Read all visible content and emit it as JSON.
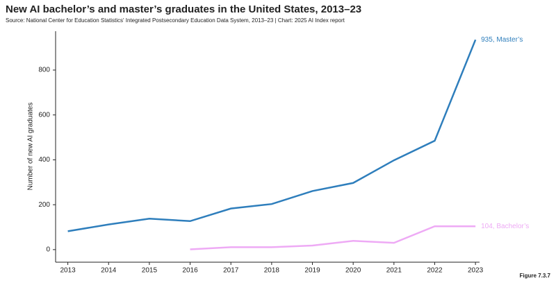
{
  "chart_data": {
    "type": "line",
    "title": "New AI bachelor’s and master’s graduates in the United States, 2013–23",
    "subtitle": "Source: National Center for Education Statistics' Integrated Postsecondary Education Data System, 2013–23 | Chart: 2025 AI Index report",
    "y_label": "Number of new AI graduates",
    "figure": "Figure 7.3.7",
    "x": [
      2013,
      2014,
      2015,
      2016,
      2017,
      2018,
      2019,
      2020,
      2021,
      2022,
      2023
    ],
    "series": [
      {
        "name": "Master's",
        "color": "#2e7ebc",
        "values": [
          82,
          112,
          138,
          127,
          183,
          203,
          261,
          297,
          398,
          485,
          935
        ],
        "value_labels": [
          null,
          null,
          null,
          null,
          null,
          null,
          null,
          null,
          null,
          null,
          "935, Master’s"
        ]
      },
      {
        "name": "Bachelor's",
        "color": "#eeaaf5",
        "values": [
          null,
          null,
          null,
          1,
          11,
          11,
          18,
          39,
          30,
          104,
          104
        ],
        "value_labels": [
          null,
          null,
          null,
          null,
          null,
          null,
          null,
          null,
          null,
          null,
          "104, Bachelor’s"
        ]
      }
    ],
    "xlim": [
      2012.7,
      2023.1
    ],
    "xticks": [
      2013,
      2014,
      2015,
      2016,
      2017,
      2018,
      2019,
      2020,
      2021,
      2022,
      2023
    ],
    "ylim": [
      -56,
      973
    ],
    "yticks": [
      0,
      200,
      400,
      600,
      800
    ]
  }
}
